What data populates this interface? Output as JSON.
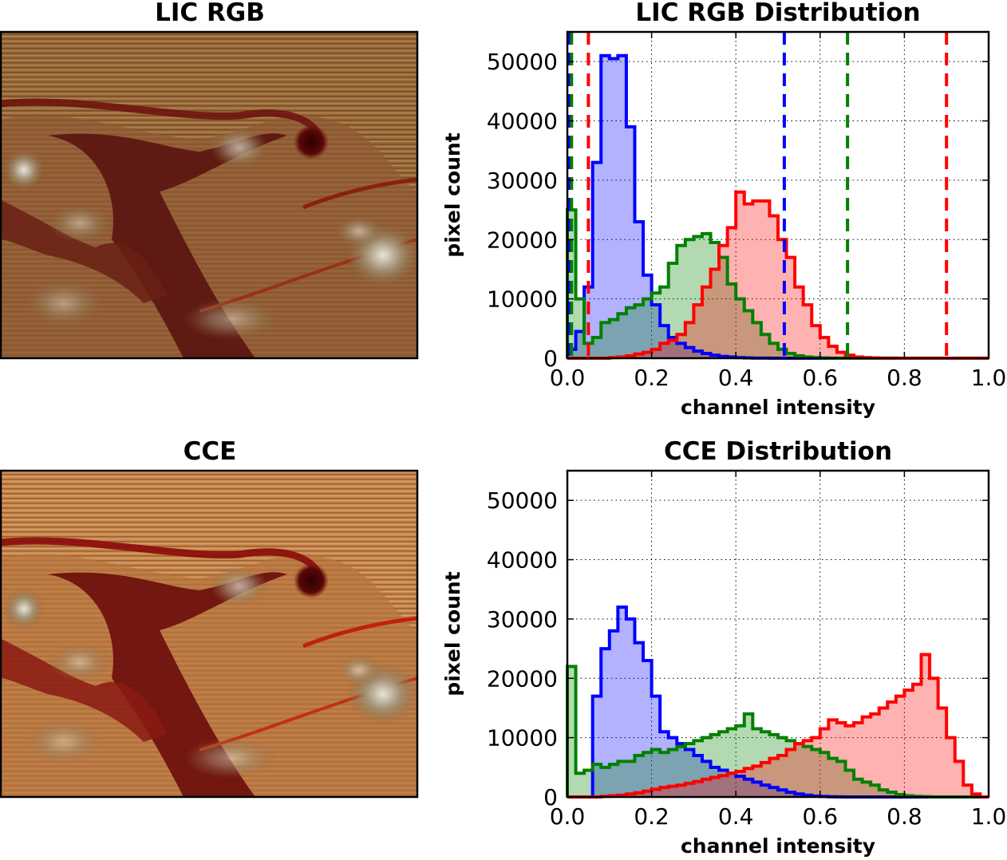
{
  "panels": {
    "top_left": {
      "title": "LIC RGB"
    },
    "bottom_left": {
      "title": "CCE"
    }
  },
  "colors": {
    "red": "#ff0000",
    "green": "#008000",
    "blue": "#0000ff",
    "red_fill": "#ffb3b3",
    "green_fill": "#b3d9b3",
    "blue_fill": "#b3b3ff"
  },
  "chart_data": [
    {
      "type": "histogram",
      "title": "LIC RGB Distribution",
      "xlabel": "channel intensity",
      "ylabel": "pixel count",
      "xlim": [
        0,
        1
      ],
      "ylim": [
        0,
        55000
      ],
      "xticks": [
        "0.0",
        "0.2",
        "0.4",
        "0.6",
        "0.8",
        "1.0"
      ],
      "yticks": [
        "0",
        "10000",
        "20000",
        "30000",
        "40000",
        "50000"
      ],
      "grid": true,
      "bin_width": 0.02,
      "series": [
        {
          "color": "blue",
          "counts": [
            1500,
            4500,
            12000,
            33000,
            51000,
            50500,
            51000,
            39000,
            23000,
            14000,
            9000,
            5500,
            3500,
            2500,
            1800,
            1200,
            800,
            500,
            300,
            200,
            100,
            50,
            20,
            10,
            0,
            0,
            0,
            0,
            0,
            0,
            0,
            0,
            0,
            0,
            0,
            0,
            0,
            0,
            0,
            0,
            0,
            0,
            0,
            0,
            0,
            0,
            0,
            0,
            0,
            0
          ]
        },
        {
          "color": "green",
          "counts": [
            25000,
            10000,
            2500,
            3500,
            6000,
            6500,
            7500,
            8500,
            9000,
            10000,
            11000,
            12000,
            16000,
            19000,
            20000,
            20500,
            21000,
            19500,
            17000,
            12500,
            10000,
            8000,
            6000,
            4000,
            2500,
            1500,
            800,
            400,
            200,
            100,
            50,
            20,
            0,
            0,
            0,
            0,
            0,
            0,
            0,
            0,
            0,
            0,
            0,
            0,
            0,
            0,
            0,
            0,
            0,
            0
          ]
        },
        {
          "color": "red",
          "counts": [
            0,
            0,
            0,
            0,
            0,
            100,
            200,
            400,
            700,
            1000,
            1500,
            2500,
            3000,
            4000,
            6000,
            9000,
            12000,
            15000,
            19000,
            22000,
            28000,
            26000,
            26500,
            26500,
            24000,
            20000,
            17000,
            12000,
            9000,
            5500,
            3500,
            2000,
            1000,
            500,
            200,
            100,
            50,
            20,
            10,
            0,
            0,
            0,
            0,
            0,
            0,
            0,
            0,
            0,
            0,
            0
          ]
        }
      ],
      "vlines": [
        {
          "color": "blue",
          "x": 0.005
        },
        {
          "color": "green",
          "x": 0.01
        },
        {
          "color": "red",
          "x": 0.05
        },
        {
          "color": "blue",
          "x": 0.515
        },
        {
          "color": "green",
          "x": 0.665
        },
        {
          "color": "red",
          "x": 0.9
        }
      ]
    },
    {
      "type": "histogram",
      "title": "CCE Distribution",
      "xlabel": "channel intensity",
      "ylabel": "pixel count",
      "xlim": [
        0,
        1
      ],
      "ylim": [
        0,
        55000
      ],
      "xticks": [
        "0.0",
        "0.2",
        "0.4",
        "0.6",
        "0.8",
        "1.0"
      ],
      "yticks": [
        "0",
        "10000",
        "20000",
        "30000",
        "40000",
        "50000"
      ],
      "grid": true,
      "bin_width": 0.02,
      "series": [
        {
          "color": "blue",
          "counts": [
            0,
            0,
            0,
            17000,
            25000,
            28000,
            32000,
            30000,
            26000,
            23000,
            17000,
            11000,
            10000,
            9000,
            8000,
            7000,
            6000,
            5000,
            4500,
            4000,
            3500,
            3000,
            2500,
            2000,
            1600,
            1200,
            800,
            500,
            300,
            150,
            80,
            30,
            10,
            0,
            0,
            0,
            0,
            0,
            0,
            0,
            0,
            0,
            0,
            0,
            0,
            0,
            0,
            0,
            0,
            0
          ]
        },
        {
          "color": "green",
          "counts": [
            22000,
            4000,
            4500,
            5500,
            5000,
            5500,
            6000,
            6000,
            7000,
            7500,
            8000,
            7500,
            8000,
            8500,
            9000,
            9500,
            10000,
            10500,
            11000,
            11500,
            12000,
            14000,
            11500,
            11000,
            10500,
            10000,
            9500,
            9000,
            8500,
            8000,
            7500,
            6500,
            6000,
            4500,
            3000,
            2500,
            2000,
            1200,
            800,
            400,
            200,
            100,
            50,
            0,
            0,
            0,
            0,
            0,
            0,
            0
          ]
        },
        {
          "color": "red",
          "counts": [
            0,
            0,
            0,
            0,
            100,
            200,
            300,
            500,
            700,
            1000,
            1300,
            1600,
            1800,
            2000,
            2300,
            2600,
            3000,
            3300,
            3600,
            4000,
            4300,
            4800,
            5200,
            5800,
            6500,
            7000,
            8000,
            9000,
            9500,
            10000,
            11500,
            13000,
            12500,
            12000,
            12500,
            13500,
            14000,
            15000,
            16000,
            17000,
            18000,
            19000,
            24000,
            20000,
            15000,
            10000,
            6000,
            2000,
            500,
            0
          ]
        }
      ],
      "vlines": []
    }
  ]
}
